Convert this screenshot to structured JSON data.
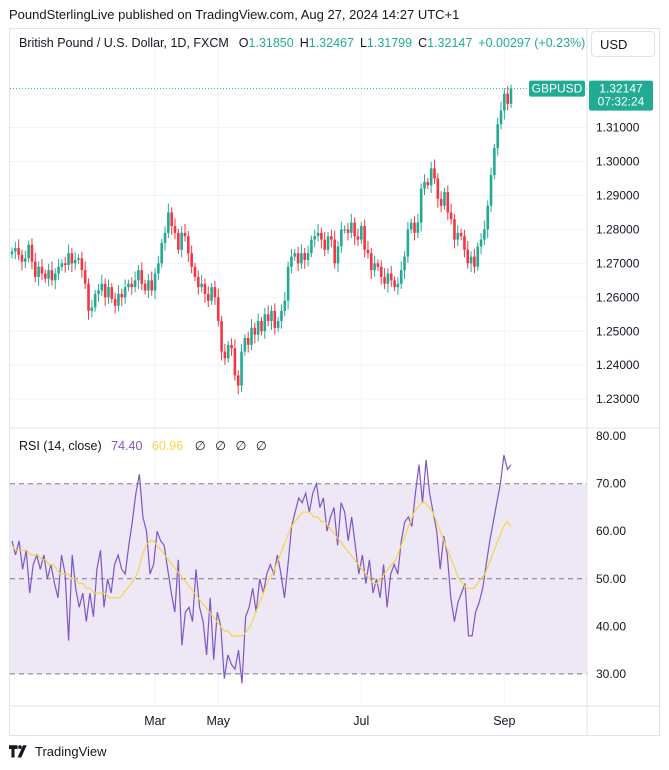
{
  "caption": "PoundSterlingLive published on TradingView.com, Aug 27, 2024 14:27 UTC+1",
  "legend": {
    "symbol": "British Pound / U.S. Dollar, 1D, FXCM",
    "o_label": "O",
    "o_value": "1.31850",
    "h_label": "H",
    "h_value": "1.32467",
    "l_label": "L",
    "l_value": "1.31799",
    "c_label": "C",
    "c_value": "1.32147",
    "change": "+0.00297 (+0.23%)"
  },
  "currency_button": "USD",
  "price_tag": {
    "ticker": "GBPUSD",
    "price": "1.32147",
    "countdown": "07:32:24"
  },
  "rsi_legend": {
    "name": "RSI (14, close)",
    "rsi_value": "74.40",
    "ma_value": "60.96",
    "na_marks": [
      "∅",
      "∅",
      "∅",
      "∅"
    ]
  },
  "footer": {
    "brand": "TradingView"
  },
  "colors": {
    "up": "#22ab94",
    "down": "#f23645",
    "rsi": "#7e57c2",
    "rsi_ma": "#f5d547",
    "band": "#ede7f6",
    "grid": "#f0f3fa",
    "tag": "#22ab94"
  },
  "chart_data": [
    {
      "type": "candlestick",
      "title": "British Pound / U.S. Dollar, 1D, FXCM",
      "x_ticks": [
        "Mar",
        "May",
        "Jul",
        "Sep"
      ],
      "y_ticks": [
        "1.31000",
        "1.30000",
        "1.29000",
        "1.28000",
        "1.27000",
        "1.26000",
        "1.25000",
        "1.24000",
        "1.23000"
      ],
      "ylim": [
        1.2215,
        1.3305
      ],
      "last_price": 1.32147,
      "close": [
        1.2735,
        1.2745,
        1.2725,
        1.2705,
        1.2715,
        1.2755,
        1.2705,
        1.266,
        1.269,
        1.267,
        1.2655,
        1.268,
        1.265,
        1.267,
        1.269,
        1.27,
        1.2695,
        1.273,
        1.27,
        1.271,
        1.2715,
        1.268,
        1.264,
        1.256,
        1.257,
        1.261,
        1.262,
        1.264,
        1.26,
        1.263,
        1.2595,
        1.2575,
        1.261,
        1.26,
        1.263,
        1.264,
        1.263,
        1.265,
        1.268,
        1.264,
        1.262,
        1.265,
        1.262,
        1.267,
        1.27,
        1.276,
        1.279,
        1.285,
        1.281,
        1.279,
        1.274,
        1.279,
        1.278,
        1.273,
        1.269,
        1.266,
        1.263,
        1.264,
        1.261,
        1.259,
        1.263,
        1.26,
        1.253,
        1.244,
        1.242,
        1.246,
        1.245,
        1.237,
        1.234,
        1.244,
        1.248,
        1.246,
        1.251,
        1.249,
        1.253,
        1.25,
        1.255,
        1.253,
        1.256,
        1.251,
        1.253,
        1.256,
        1.259,
        1.269,
        1.272,
        1.273,
        1.27,
        1.273,
        1.271,
        1.273,
        1.277,
        1.278,
        1.279,
        1.277,
        1.274,
        1.278,
        1.277,
        1.27,
        1.275,
        1.28,
        1.28,
        1.279,
        1.282,
        1.278,
        1.277,
        1.281,
        1.274,
        1.273,
        1.268,
        1.27,
        1.269,
        1.266,
        1.264,
        1.267,
        1.265,
        1.263,
        1.264,
        1.268,
        1.272,
        1.28,
        1.282,
        1.279,
        1.282,
        1.292,
        1.294,
        1.293,
        1.298,
        1.295,
        1.289,
        1.287,
        1.291,
        1.285,
        1.283,
        1.277,
        1.279,
        1.278,
        1.274,
        1.27,
        1.272,
        1.269,
        1.275,
        1.277,
        1.28,
        1.287,
        1.296,
        1.304,
        1.311,
        1.315,
        1.32,
        1.317,
        1.3215
      ]
    },
    {
      "type": "line",
      "title": "RSI (14, close)",
      "y_ticks": [
        "80.00",
        "70.00",
        "60.00",
        "50.00",
        "40.00",
        "30.00"
      ],
      "ylim": [
        23.25,
        81.29
      ],
      "levels": {
        "upper": 70,
        "middle": 50,
        "lower": 30
      },
      "series": [
        {
          "name": "RSI",
          "values": [
            58,
            55,
            58,
            52,
            56,
            47,
            53,
            55,
            52,
            55,
            50,
            53,
            49,
            46,
            55,
            51,
            37,
            55,
            48,
            44,
            47,
            41,
            47,
            42,
            52,
            56,
            44,
            50,
            47,
            53,
            55,
            52,
            51,
            57,
            62,
            68,
            72,
            63,
            60,
            51,
            53,
            60,
            58,
            57,
            52,
            47,
            43,
            54,
            36,
            43,
            44,
            41,
            52,
            44,
            41,
            34,
            46,
            33,
            43,
            40,
            29,
            34,
            32,
            31,
            35,
            28,
            42,
            44,
            48,
            43,
            50,
            47,
            51,
            53,
            51,
            55,
            51,
            46,
            53,
            61,
            64,
            67,
            66,
            68,
            64,
            68,
            70,
            65,
            67,
            60,
            63,
            65,
            57,
            66,
            64,
            58,
            63,
            57,
            51,
            55,
            49,
            54,
            47,
            50,
            46,
            53,
            44,
            51,
            53,
            51,
            58,
            62,
            63,
            61,
            68,
            74,
            66,
            75,
            68,
            64,
            60,
            52,
            59,
            55,
            46,
            41,
            45,
            47,
            49,
            38,
            38,
            43,
            45,
            48,
            53,
            58,
            62,
            66,
            70,
            76,
            73,
            74
          ]
        },
        {
          "name": "MA",
          "values": [
            57,
            56,
            56,
            56,
            56,
            55,
            55,
            55,
            54,
            54,
            53,
            53,
            52,
            51,
            51,
            51,
            50,
            50,
            49,
            49,
            48,
            48,
            47,
            47,
            47,
            47,
            46,
            46,
            46,
            46,
            47,
            48,
            49,
            50,
            52,
            55,
            57,
            58,
            58,
            57,
            56,
            55,
            54,
            53,
            52,
            51,
            50,
            49,
            48,
            47,
            46,
            45,
            44,
            43,
            42,
            41,
            40,
            39,
            39,
            38,
            38,
            38,
            38,
            39,
            40,
            42,
            44,
            46,
            48,
            50,
            51,
            53,
            55,
            57,
            59,
            61,
            62,
            63,
            64,
            64,
            64,
            63,
            63,
            62,
            62,
            61,
            60,
            59,
            58,
            57,
            56,
            55,
            54,
            53,
            52,
            51,
            50,
            49,
            49,
            50,
            51,
            52,
            53,
            54,
            56,
            58,
            60,
            62,
            64,
            65,
            66,
            66,
            65,
            64,
            62,
            60,
            58,
            56,
            54,
            52,
            50,
            49,
            48,
            48,
            48,
            49,
            50,
            51,
            53,
            55,
            57,
            59,
            61,
            62,
            61
          ]
        }
      ]
    }
  ]
}
